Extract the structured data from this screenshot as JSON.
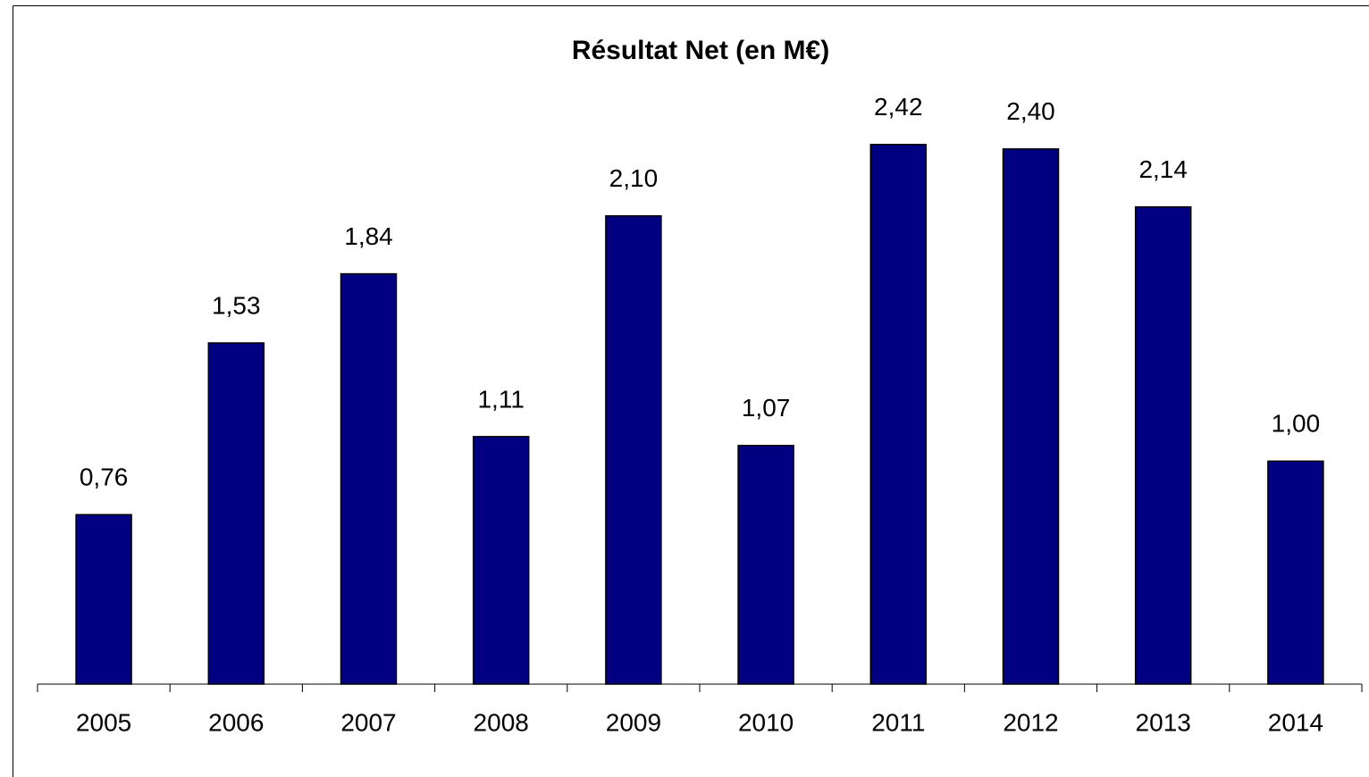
{
  "chart_data": {
    "type": "bar",
    "title": "Résultat Net (en M€)",
    "categories": [
      "2005",
      "2006",
      "2007",
      "2008",
      "2009",
      "2010",
      "2011",
      "2012",
      "2013",
      "2014"
    ],
    "values": [
      0.76,
      1.53,
      1.84,
      1.11,
      2.1,
      1.07,
      2.42,
      2.4,
      2.14,
      1.0
    ],
    "value_labels": [
      "0,76",
      "1,53",
      "1,84",
      "1,11",
      "2,10",
      "1,07",
      "2,42",
      "2,40",
      "2,14",
      "1,00"
    ],
    "color": "#000080",
    "ylim": [
      0,
      3
    ]
  }
}
